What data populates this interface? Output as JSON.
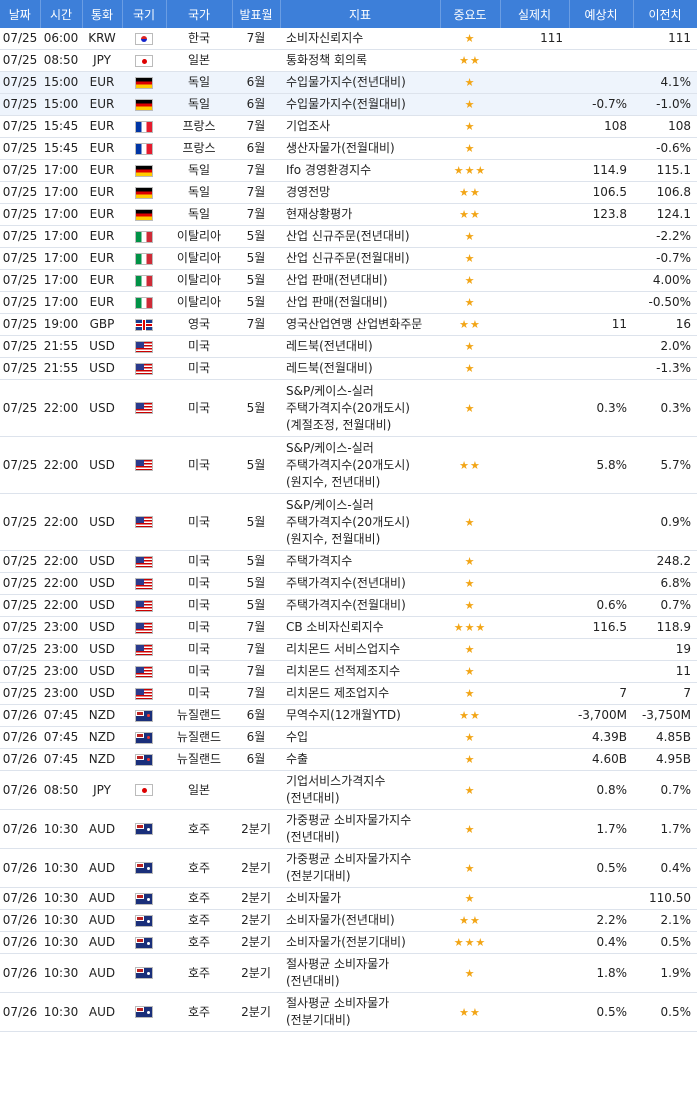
{
  "columns": [
    "날짜",
    "시간",
    "통화",
    "국기",
    "국가",
    "발표월",
    "지표",
    "중요도",
    "실제치",
    "예상치",
    "이전치"
  ],
  "rows": [
    {
      "date": "07/25",
      "time": "06:00",
      "cur": "KRW",
      "flag": "kr",
      "country": "한국",
      "month": "7월",
      "ind": "소비자신뢰지수",
      "imp": "★",
      "act": "111",
      "fc": "",
      "prev": "111"
    },
    {
      "date": "07/25",
      "time": "08:50",
      "cur": "JPY",
      "flag": "jp",
      "country": "일본",
      "month": "",
      "ind": "통화정책 회의록",
      "imp": "★★",
      "act": "",
      "fc": "",
      "prev": ""
    },
    {
      "date": "07/25",
      "time": "15:00",
      "cur": "EUR",
      "flag": "de",
      "country": "독일",
      "month": "6월",
      "ind": "수입물가지수(전년대비)",
      "imp": "★",
      "act": "",
      "fc": "",
      "prev": "4.1%",
      "alt": true
    },
    {
      "date": "07/25",
      "time": "15:00",
      "cur": "EUR",
      "flag": "de",
      "country": "독일",
      "month": "6월",
      "ind": "수입물가지수(전월대비)",
      "imp": "★",
      "act": "",
      "fc": "-0.7%",
      "prev": "-1.0%",
      "alt": true
    },
    {
      "date": "07/25",
      "time": "15:45",
      "cur": "EUR",
      "flag": "fr",
      "country": "프랑스",
      "month": "7월",
      "ind": "기업조사",
      "imp": "★",
      "act": "",
      "fc": "108",
      "prev": "108"
    },
    {
      "date": "07/25",
      "time": "15:45",
      "cur": "EUR",
      "flag": "fr",
      "country": "프랑스",
      "month": "6월",
      "ind": "생산자물가(전월대비)",
      "imp": "★",
      "act": "",
      "fc": "",
      "prev": "-0.6%"
    },
    {
      "date": "07/25",
      "time": "17:00",
      "cur": "EUR",
      "flag": "de",
      "country": "독일",
      "month": "7월",
      "ind": "Ifo 경영환경지수",
      "imp": "★★★",
      "act": "",
      "fc": "114.9",
      "prev": "115.1"
    },
    {
      "date": "07/25",
      "time": "17:00",
      "cur": "EUR",
      "flag": "de",
      "country": "독일",
      "month": "7월",
      "ind": "경영전망",
      "imp": "★★",
      "act": "",
      "fc": "106.5",
      "prev": "106.8"
    },
    {
      "date": "07/25",
      "time": "17:00",
      "cur": "EUR",
      "flag": "de",
      "country": "독일",
      "month": "7월",
      "ind": "현재상황평가",
      "imp": "★★",
      "act": "",
      "fc": "123.8",
      "prev": "124.1"
    },
    {
      "date": "07/25",
      "time": "17:00",
      "cur": "EUR",
      "flag": "it",
      "country": "이탈리아",
      "month": "5월",
      "ind": "산업 신규주문(전년대비)",
      "imp": "★",
      "act": "",
      "fc": "",
      "prev": "-2.2%"
    },
    {
      "date": "07/25",
      "time": "17:00",
      "cur": "EUR",
      "flag": "it",
      "country": "이탈리아",
      "month": "5월",
      "ind": "산업 신규주문(전월대비)",
      "imp": "★",
      "act": "",
      "fc": "",
      "prev": "-0.7%"
    },
    {
      "date": "07/25",
      "time": "17:00",
      "cur": "EUR",
      "flag": "it",
      "country": "이탈리아",
      "month": "5월",
      "ind": "산업 판매(전년대비)",
      "imp": "★",
      "act": "",
      "fc": "",
      "prev": "4.00%"
    },
    {
      "date": "07/25",
      "time": "17:00",
      "cur": "EUR",
      "flag": "it",
      "country": "이탈리아",
      "month": "5월",
      "ind": "산업 판매(전월대비)",
      "imp": "★",
      "act": "",
      "fc": "",
      "prev": "-0.50%"
    },
    {
      "date": "07/25",
      "time": "19:00",
      "cur": "GBP",
      "flag": "gb",
      "country": "영국",
      "month": "7월",
      "ind": "영국산업연맹 산업변화주문",
      "imp": "★★",
      "act": "",
      "fc": "11",
      "prev": "16"
    },
    {
      "date": "07/25",
      "time": "21:55",
      "cur": "USD",
      "flag": "us",
      "country": "미국",
      "month": "",
      "ind": "레드북(전년대비)",
      "imp": "★",
      "act": "",
      "fc": "",
      "prev": "2.0%"
    },
    {
      "date": "07/25",
      "time": "21:55",
      "cur": "USD",
      "flag": "us",
      "country": "미국",
      "month": "",
      "ind": "레드북(전월대비)",
      "imp": "★",
      "act": "",
      "fc": "",
      "prev": "-1.3%"
    },
    {
      "date": "07/25",
      "time": "22:00",
      "cur": "USD",
      "flag": "us",
      "country": "미국",
      "month": "5월",
      "ind": "S&P/케이스-실러 주택가격지수(20개도시)(계절조정, 전월대비)",
      "imp": "★",
      "act": "",
      "fc": "0.3%",
      "prev": "0.3%"
    },
    {
      "date": "07/25",
      "time": "22:00",
      "cur": "USD",
      "flag": "us",
      "country": "미국",
      "month": "5월",
      "ind": "S&P/케이스-실러 주택가격지수(20개도시)(원지수, 전년대비)",
      "imp": "★★",
      "act": "",
      "fc": "5.8%",
      "prev": "5.7%"
    },
    {
      "date": "07/25",
      "time": "22:00",
      "cur": "USD",
      "flag": "us",
      "country": "미국",
      "month": "5월",
      "ind": "S&P/케이스-실러 주택가격지수(20개도시)(원지수, 전월대비)",
      "imp": "★",
      "act": "",
      "fc": "",
      "prev": "0.9%"
    },
    {
      "date": "07/25",
      "time": "22:00",
      "cur": "USD",
      "flag": "us",
      "country": "미국",
      "month": "5월",
      "ind": "주택가격지수",
      "imp": "★",
      "act": "",
      "fc": "",
      "prev": "248.2"
    },
    {
      "date": "07/25",
      "time": "22:00",
      "cur": "USD",
      "flag": "us",
      "country": "미국",
      "month": "5월",
      "ind": "주택가격지수(전년대비)",
      "imp": "★",
      "act": "",
      "fc": "",
      "prev": "6.8%"
    },
    {
      "date": "07/25",
      "time": "22:00",
      "cur": "USD",
      "flag": "us",
      "country": "미국",
      "month": "5월",
      "ind": "주택가격지수(전월대비)",
      "imp": "★",
      "act": "",
      "fc": "0.6%",
      "prev": "0.7%"
    },
    {
      "date": "07/25",
      "time": "23:00",
      "cur": "USD",
      "flag": "us",
      "country": "미국",
      "month": "7월",
      "ind": "CB 소비자신뢰지수",
      "imp": "★★★",
      "act": "",
      "fc": "116.5",
      "prev": "118.9"
    },
    {
      "date": "07/25",
      "time": "23:00",
      "cur": "USD",
      "flag": "us",
      "country": "미국",
      "month": "7월",
      "ind": "리치몬드 서비스업지수",
      "imp": "★",
      "act": "",
      "fc": "",
      "prev": "19"
    },
    {
      "date": "07/25",
      "time": "23:00",
      "cur": "USD",
      "flag": "us",
      "country": "미국",
      "month": "7월",
      "ind": "리치몬드 선적제조지수",
      "imp": "★",
      "act": "",
      "fc": "",
      "prev": "11"
    },
    {
      "date": "07/25",
      "time": "23:00",
      "cur": "USD",
      "flag": "us",
      "country": "미국",
      "month": "7월",
      "ind": "리치몬드 제조업지수",
      "imp": "★",
      "act": "",
      "fc": "7",
      "prev": "7"
    },
    {
      "date": "07/26",
      "time": "07:45",
      "cur": "NZD",
      "flag": "nz",
      "country": "뉴질랜드",
      "month": "6월",
      "ind": "무역수지(12개월YTD)",
      "imp": "★★",
      "act": "",
      "fc": "-3,700M",
      "prev": "-3,750M"
    },
    {
      "date": "07/26",
      "time": "07:45",
      "cur": "NZD",
      "flag": "nz",
      "country": "뉴질랜드",
      "month": "6월",
      "ind": "수입",
      "imp": "★",
      "act": "",
      "fc": "4.39B",
      "prev": "4.85B"
    },
    {
      "date": "07/26",
      "time": "07:45",
      "cur": "NZD",
      "flag": "nz",
      "country": "뉴질랜드",
      "month": "6월",
      "ind": "수출",
      "imp": "★",
      "act": "",
      "fc": "4.60B",
      "prev": "4.95B"
    },
    {
      "date": "07/26",
      "time": "08:50",
      "cur": "JPY",
      "flag": "jp",
      "country": "일본",
      "month": "",
      "ind": "기업서비스가격지수(전년대비)",
      "imp": "★",
      "act": "",
      "fc": "0.8%",
      "prev": "0.7%"
    },
    {
      "date": "07/26",
      "time": "10:30",
      "cur": "AUD",
      "flag": "au",
      "country": "호주",
      "month": "2분기",
      "ind": "가중평균 소비자물가지수(전년대비)",
      "imp": "★",
      "act": "",
      "fc": "1.7%",
      "prev": "1.7%"
    },
    {
      "date": "07/26",
      "time": "10:30",
      "cur": "AUD",
      "flag": "au",
      "country": "호주",
      "month": "2분기",
      "ind": "가중평균 소비자물가지수(전분기대비)",
      "imp": "★",
      "act": "",
      "fc": "0.5%",
      "prev": "0.4%"
    },
    {
      "date": "07/26",
      "time": "10:30",
      "cur": "AUD",
      "flag": "au",
      "country": "호주",
      "month": "2분기",
      "ind": "소비자물가",
      "imp": "★",
      "act": "",
      "fc": "",
      "prev": "110.50"
    },
    {
      "date": "07/26",
      "time": "10:30",
      "cur": "AUD",
      "flag": "au",
      "country": "호주",
      "month": "2분기",
      "ind": "소비자물가(전년대비)",
      "imp": "★★",
      "act": "",
      "fc": "2.2%",
      "prev": "2.1%"
    },
    {
      "date": "07/26",
      "time": "10:30",
      "cur": "AUD",
      "flag": "au",
      "country": "호주",
      "month": "2분기",
      "ind": "소비자물가(전분기대비)",
      "imp": "★★★",
      "act": "",
      "fc": "0.4%",
      "prev": "0.5%"
    },
    {
      "date": "07/26",
      "time": "10:30",
      "cur": "AUD",
      "flag": "au",
      "country": "호주",
      "month": "2분기",
      "ind": "절사평균 소비자물가(전년대비)",
      "imp": "★",
      "act": "",
      "fc": "1.8%",
      "prev": "1.9%"
    },
    {
      "date": "07/26",
      "time": "10:30",
      "cur": "AUD",
      "flag": "au",
      "country": "호주",
      "month": "2분기",
      "ind": "절사평균 소비자물가(전분기대비)",
      "imp": "★★",
      "act": "",
      "fc": "0.5%",
      "prev": "0.5%"
    }
  ]
}
